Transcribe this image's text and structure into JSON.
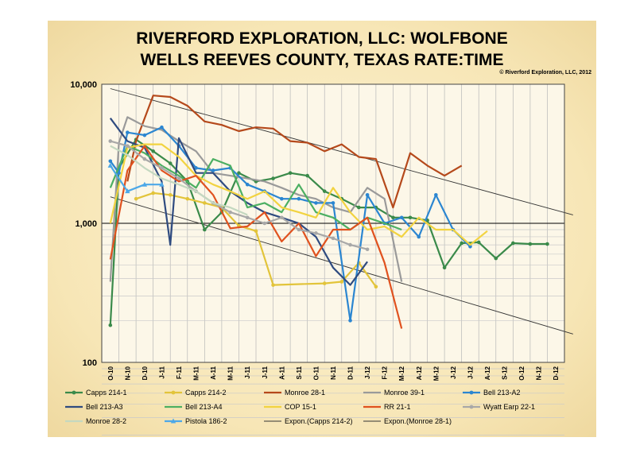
{
  "chart_data": {
    "type": "line",
    "title_line1": "RIVERFORD EXPLORATION, LLC: WOLFBONE",
    "title_line2": "WELLS REEVES COUNTY, TEXAS RATE:TIME",
    "copyright": "© Riverford Exploration, LLC, 2012",
    "y_scale": "log",
    "ylim": [
      100,
      10000
    ],
    "y_ticks": [
      {
        "value": 10000,
        "label": "10,000"
      },
      {
        "value": 1000,
        "label": "1,000"
      },
      {
        "value": 100,
        "label": "100"
      }
    ],
    "x_tick_labels": [
      "O-10",
      "N-10",
      "D-10",
      "J-11",
      "F-11",
      "M-11",
      "A-11",
      "M-11",
      "J-11",
      "J-11",
      "A-11",
      "S-11",
      "O-11",
      "N-11",
      "D-11",
      "J-12",
      "F-12",
      "M-12",
      "A-12",
      "M-12",
      "J-12",
      "J-12",
      "A-12",
      "S-12",
      "O-12",
      "N-12",
      "D-12"
    ],
    "grid": true,
    "legend_position": "bottom",
    "series": [
      {
        "name": "Capps 214-1",
        "color": "#3a8a4a",
        "marker": "circle",
        "points": [
          [
            0,
            185
          ],
          [
            0.5,
            2500
          ],
          [
            1.5,
            4000
          ],
          [
            2.5,
            3300
          ],
          [
            3.5,
            2700
          ],
          [
            4.5,
            2000
          ],
          [
            5.5,
            900
          ],
          [
            6.5,
            1200
          ],
          [
            7.5,
            2300
          ],
          [
            8.5,
            2000
          ],
          [
            9.5,
            2100
          ],
          [
            10.5,
            2300
          ],
          [
            11.5,
            2200
          ],
          [
            12.5,
            1700
          ],
          [
            13.5,
            1500
          ],
          [
            14.5,
            1300
          ],
          [
            15.5,
            1300
          ],
          [
            16.5,
            1100
          ],
          [
            17.5,
            1100
          ],
          [
            18.5,
            1050
          ],
          [
            19.5,
            480
          ],
          [
            20.5,
            720
          ],
          [
            21.5,
            730
          ],
          [
            22.5,
            560
          ],
          [
            23.5,
            720
          ],
          [
            24.5,
            710
          ],
          [
            25.5,
            710
          ]
        ]
      },
      {
        "name": "Capps 214-2",
        "color": "#e2c43a",
        "marker": "circle",
        "points": [
          [
            1.5,
            1500
          ],
          [
            2.5,
            1650
          ],
          [
            3.5,
            1600
          ],
          [
            4.5,
            1500
          ],
          [
            5.5,
            1400
          ],
          [
            6.5,
            1300
          ],
          [
            7.5,
            960
          ],
          [
            8.5,
            880
          ],
          [
            9.5,
            360
          ],
          [
            12.5,
            370
          ],
          [
            13.5,
            380
          ],
          [
            14.5,
            520
          ],
          [
            15.5,
            350
          ]
        ]
      },
      {
        "name": "Monroe 28-1",
        "color": "#b5491b",
        "marker": "none",
        "points": [
          [
            1,
            2000
          ],
          [
            1.5,
            3900
          ],
          [
            2.5,
            8300
          ],
          [
            3.5,
            8100
          ],
          [
            4.5,
            7000
          ],
          [
            5.5,
            5400
          ],
          [
            6.5,
            5100
          ],
          [
            7.5,
            4600
          ],
          [
            8.5,
            4900
          ],
          [
            9.5,
            4800
          ],
          [
            10.5,
            3900
          ],
          [
            11.5,
            3800
          ],
          [
            12.5,
            3300
          ],
          [
            13.5,
            3700
          ],
          [
            14.5,
            3000
          ],
          [
            15.5,
            2900
          ],
          [
            16.5,
            1300
          ],
          [
            17.5,
            3200
          ],
          [
            18.5,
            2600
          ],
          [
            19.5,
            2200
          ],
          [
            20.5,
            2600
          ]
        ]
      },
      {
        "name": "Monroe 39-1",
        "color": "#9a9a9a",
        "marker": "none",
        "points": [
          [
            0,
            380
          ],
          [
            0.5,
            3800
          ],
          [
            1,
            5800
          ],
          [
            2,
            5000
          ],
          [
            3,
            4700
          ],
          [
            4,
            3900
          ],
          [
            5,
            3300
          ],
          [
            6,
            2300
          ],
          [
            7,
            2200
          ],
          [
            8,
            2100
          ],
          [
            9,
            2000
          ],
          [
            10,
            1800
          ],
          [
            11,
            1600
          ],
          [
            12,
            1500
          ],
          [
            13,
            1300
          ],
          [
            14,
            1200
          ],
          [
            15,
            1800
          ],
          [
            16,
            1500
          ],
          [
            17,
            380
          ]
        ]
      },
      {
        "name": "Bell 213-A2",
        "color": "#2b86d1",
        "marker": "circle",
        "points": [
          [
            0,
            2800
          ],
          [
            0.5,
            2300
          ],
          [
            1,
            4500
          ],
          [
            2,
            4300
          ],
          [
            3,
            4900
          ],
          [
            4,
            3600
          ],
          [
            5,
            2500
          ],
          [
            6,
            2400
          ],
          [
            7,
            2500
          ],
          [
            8,
            1900
          ],
          [
            9,
            1700
          ],
          [
            10,
            1500
          ],
          [
            11,
            1500
          ],
          [
            12,
            1400
          ],
          [
            13,
            1400
          ],
          [
            14,
            200
          ],
          [
            15,
            1600
          ],
          [
            16,
            1000
          ],
          [
            17,
            1100
          ],
          [
            18,
            800
          ],
          [
            19,
            1600
          ],
          [
            20,
            900
          ],
          [
            21,
            680
          ]
        ]
      },
      {
        "name": "Bell 213-A3",
        "color": "#2f4b80",
        "marker": "none",
        "points": [
          [
            0,
            5700
          ],
          [
            1,
            3900
          ],
          [
            2,
            3500
          ],
          [
            3,
            2000
          ],
          [
            3.5,
            700
          ],
          [
            4,
            4100
          ],
          [
            5,
            2300
          ],
          [
            6,
            2300
          ],
          [
            7,
            1700
          ],
          [
            8,
            1400
          ],
          [
            9,
            1200
          ],
          [
            10,
            1100
          ],
          [
            11,
            1000
          ],
          [
            12,
            800
          ],
          [
            13,
            480
          ],
          [
            14,
            360
          ],
          [
            15,
            530
          ]
        ]
      },
      {
        "name": "Bell 213-A4",
        "color": "#4caf62",
        "marker": "none",
        "points": [
          [
            0,
            1800
          ],
          [
            1,
            3600
          ],
          [
            2,
            3200
          ],
          [
            3,
            2600
          ],
          [
            4,
            2200
          ],
          [
            5,
            1800
          ],
          [
            6,
            2900
          ],
          [
            7,
            2600
          ],
          [
            8,
            1300
          ],
          [
            9,
            1400
          ],
          [
            10,
            1200
          ],
          [
            11,
            1900
          ],
          [
            12,
            1200
          ],
          [
            13,
            1100
          ],
          [
            14,
            900
          ],
          [
            15,
            1100
          ],
          [
            16,
            1000
          ],
          [
            17,
            900
          ]
        ]
      },
      {
        "name": "COP 15-1",
        "color": "#f2d340",
        "marker": "none",
        "points": [
          [
            0,
            1000
          ],
          [
            1,
            3500
          ],
          [
            2,
            3700
          ],
          [
            3,
            3700
          ],
          [
            4,
            3000
          ],
          [
            5,
            2200
          ],
          [
            6,
            1900
          ],
          [
            7,
            1700
          ],
          [
            8,
            1500
          ],
          [
            9,
            1700
          ],
          [
            10,
            1300
          ],
          [
            11,
            1200
          ],
          [
            12,
            1100
          ],
          [
            13,
            1800
          ],
          [
            14,
            1200
          ],
          [
            15,
            900
          ],
          [
            16,
            950
          ],
          [
            17,
            800
          ],
          [
            18,
            1100
          ],
          [
            19,
            900
          ],
          [
            20,
            900
          ],
          [
            21,
            700
          ],
          [
            22,
            880
          ]
        ]
      },
      {
        "name": "RR 21-1",
        "color": "#e0521f",
        "marker": "none",
        "points": [
          [
            0,
            550
          ],
          [
            1,
            2400
          ],
          [
            2,
            3600
          ],
          [
            3,
            2400
          ],
          [
            4,
            2000
          ],
          [
            5,
            2200
          ],
          [
            6,
            1600
          ],
          [
            7,
            920
          ],
          [
            8,
            950
          ],
          [
            9,
            1200
          ],
          [
            10,
            740
          ],
          [
            11,
            1000
          ],
          [
            12,
            580
          ],
          [
            13,
            900
          ],
          [
            14,
            900
          ],
          [
            15,
            1100
          ],
          [
            16,
            520
          ],
          [
            17,
            175
          ]
        ]
      },
      {
        "name": "Wyatt Earp 22-1",
        "color": "#a8a8a8",
        "marker": "circle",
        "points": [
          [
            0,
            3900
          ],
          [
            1,
            3600
          ],
          [
            2,
            2900
          ],
          [
            3,
            2500
          ],
          [
            4,
            2100
          ],
          [
            5,
            1700
          ],
          [
            6,
            1400
          ],
          [
            7,
            1200
          ],
          [
            8,
            1100
          ],
          [
            9,
            1000
          ],
          [
            10,
            1100
          ],
          [
            11,
            900
          ],
          [
            12,
            850
          ],
          [
            13,
            780
          ],
          [
            14,
            700
          ],
          [
            15,
            650
          ]
        ]
      },
      {
        "name": "Monroe 28-2",
        "color": "#c4d8c0",
        "marker": "none",
        "points": [
          [
            0,
            3600
          ],
          [
            1,
            3100
          ],
          [
            2,
            2500
          ],
          [
            3,
            2100
          ],
          [
            4,
            1900
          ],
          [
            5,
            1700
          ],
          [
            6,
            1400
          ],
          [
            7,
            1300
          ],
          [
            8,
            1150
          ]
        ]
      },
      {
        "name": "Pistola 186-2",
        "color": "#4da8e8",
        "marker": "triangle",
        "points": [
          [
            0,
            2600
          ],
          [
            1,
            1700
          ],
          [
            2,
            1900
          ],
          [
            3,
            1900
          ]
        ]
      },
      {
        "name": "Expon.(Capps 214-2)",
        "color": "#333333",
        "marker": "none",
        "points": [
          [
            0,
            1550
          ],
          [
            27,
            160
          ]
        ]
      },
      {
        "name": "Expon.(Monroe 28-1)",
        "color": "#333333",
        "marker": "none",
        "points": [
          [
            0,
            9300
          ],
          [
            27,
            1150
          ]
        ]
      }
    ]
  }
}
